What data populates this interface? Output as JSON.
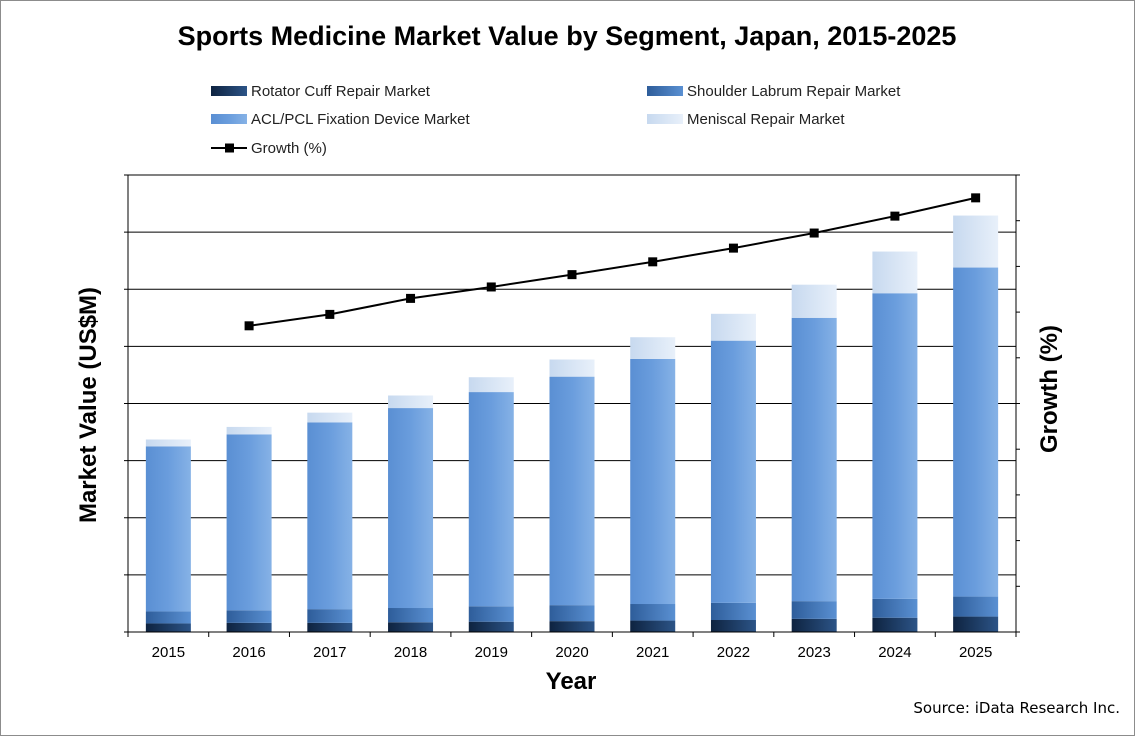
{
  "chart_data": {
    "type": "bar",
    "stacked": true,
    "title": "Sports Medicine Market Value by Segment, Japan, 2015-2025",
    "xlabel": "Year",
    "ylabel": "Market Value (US$M)",
    "y2label": "Growth (%)",
    "categories": [
      "2015",
      "2016",
      "2017",
      "2018",
      "2019",
      "2020",
      "2021",
      "2022",
      "2023",
      "2024",
      "2025"
    ],
    "ylim": [
      0,
      8
    ],
    "y2lim": [
      0,
      10
    ],
    "y_gridlines": true,
    "legend_position": "top",
    "series": [
      {
        "name": "Rotator Cuff Repair Market",
        "kind": "bar",
        "color": "#1f3d63",
        "values": [
          0.15,
          0.16,
          0.16,
          0.17,
          0.18,
          0.19,
          0.2,
          0.21,
          0.23,
          0.25,
          0.27
        ]
      },
      {
        "name": "Shoulder Labrum Repair Market",
        "kind": "bar",
        "color": "#4a7fc0",
        "values": [
          0.21,
          0.22,
          0.24,
          0.25,
          0.27,
          0.28,
          0.29,
          0.3,
          0.31,
          0.33,
          0.35
        ]
      },
      {
        "name": "ACL/PCL Fixation Device Market",
        "kind": "bar",
        "color": "#6fa0de",
        "values": [
          2.89,
          3.08,
          3.27,
          3.5,
          3.75,
          4.0,
          4.29,
          4.59,
          4.96,
          5.35,
          5.76
        ]
      },
      {
        "name": "Meniscal Repair Market",
        "kind": "bar",
        "color": "#d9e6f5",
        "values": [
          0.12,
          0.13,
          0.17,
          0.22,
          0.26,
          0.3,
          0.38,
          0.47,
          0.58,
          0.73,
          0.91
        ]
      },
      {
        "name": "Growth (%)",
        "kind": "line",
        "color": "#000000",
        "values": [
          null,
          6.7,
          6.95,
          7.3,
          7.55,
          7.82,
          8.1,
          8.4,
          8.73,
          9.1,
          9.5
        ]
      }
    ]
  },
  "source": "Source: iData Research Inc."
}
